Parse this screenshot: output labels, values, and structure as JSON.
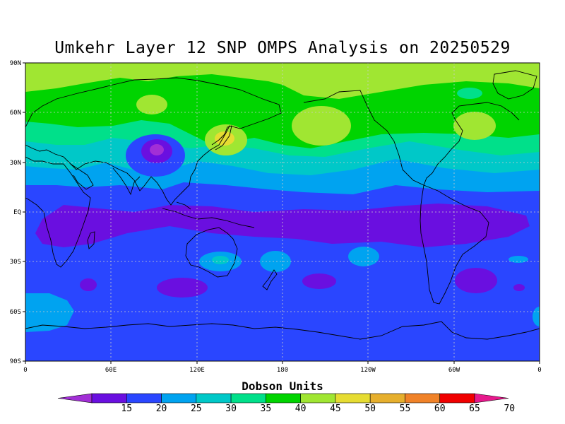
{
  "title": "Umkehr Layer 12 SNP OMPS Analysis on 20250529",
  "map": {
    "lat_ticks": [
      "90N",
      "60N",
      "30N",
      "EQ",
      "30S",
      "60S",
      "90S"
    ],
    "lon_ticks": [
      "0",
      "60E",
      "120E",
      "180",
      "120W",
      "60W",
      "0"
    ],
    "background_color": "#2a46ff",
    "coast_color": "#000000"
  },
  "colorbar": {
    "title": "Dobson Units",
    "labels": [
      "15",
      "20",
      "25",
      "30",
      "35",
      "40",
      "45",
      "50",
      "55",
      "60",
      "65",
      "70"
    ],
    "colors": [
      "#a22fd6",
      "#6a0fe0",
      "#2a46ff",
      "#00a3f0",
      "#00c8c8",
      "#00e08a",
      "#00d400",
      "#a0e632",
      "#e6dc32",
      "#e6af2d",
      "#f08228",
      "#f00000",
      "#e6198c"
    ]
  }
}
